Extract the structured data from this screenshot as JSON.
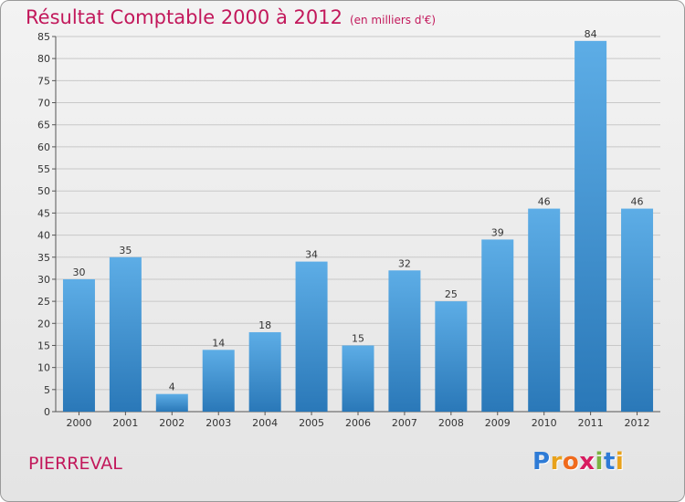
{
  "title": "Résultat Comptable 2000 à 2012",
  "subtitle": "(en milliers d'€)",
  "commune": "PIERREVAL",
  "logo": {
    "letters": [
      "P",
      "r",
      "o",
      "x",
      "i",
      "t",
      "i"
    ],
    "colors": [
      "#2e7bd6",
      "#e8a21b",
      "#f06a1c",
      "#d81b60",
      "#7cb342",
      "#2e7bd6",
      "#e8a21b"
    ]
  },
  "colors": {
    "accent": "#c2185b",
    "bar": "#3d93d6"
  },
  "chart_data": {
    "type": "bar",
    "categories": [
      "2000",
      "2001",
      "2002",
      "2003",
      "2004",
      "2005",
      "2006",
      "2007",
      "2008",
      "2009",
      "2010",
      "2011",
      "2012"
    ],
    "values": [
      30,
      35,
      4,
      14,
      18,
      34,
      15,
      32,
      25,
      39,
      46,
      84,
      46
    ],
    "ylim": [
      0,
      85
    ],
    "yticks": [
      0,
      5,
      10,
      15,
      20,
      25,
      30,
      35,
      40,
      45,
      50,
      55,
      60,
      65,
      70,
      75,
      80,
      85
    ],
    "grid": true
  }
}
